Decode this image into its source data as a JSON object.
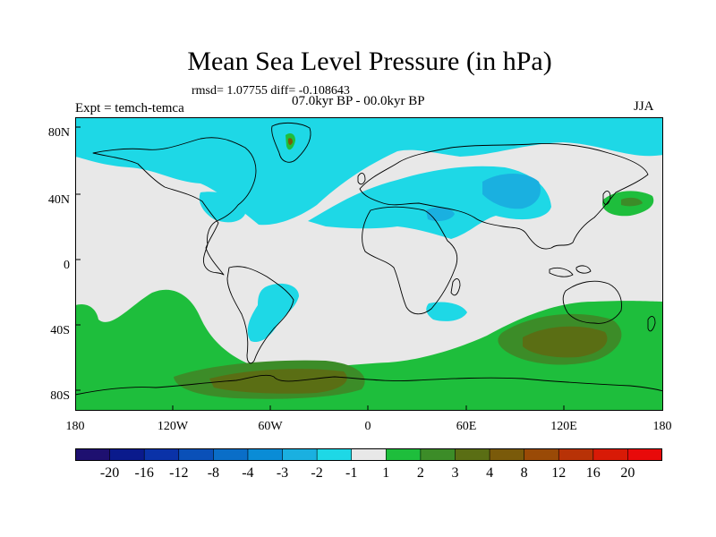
{
  "title": "Mean Sea Level Pressure (in hPa)",
  "stats": "rmsd= 1.07755 diff= -0.108643",
  "period": "07.0kyr BP - 00.0kyr BP",
  "experiment": "Expt = temch-temca",
  "season": "JJA",
  "lat_labels": [
    "80N",
    "40N",
    "0",
    "40S",
    "80S"
  ],
  "lon_labels": [
    "180",
    "120W",
    "60W",
    "0",
    "60E",
    "120E",
    "180"
  ],
  "colorbar": {
    "labels": [
      "-20",
      "-16",
      "-12",
      "-8",
      "-4",
      "-3",
      "-2",
      "-1",
      "1",
      "2",
      "3",
      "4",
      "8",
      "12",
      "16",
      "20"
    ],
    "colors": [
      "#1e1070",
      "#0a1a8c",
      "#0a32a8",
      "#0a50b8",
      "#0a6ec8",
      "#0a8cd6",
      "#1ab0e0",
      "#1ed8e6",
      "#e8e8e8",
      "#1ebe3c",
      "#3c8c28",
      "#5a6e14",
      "#7a5a0a",
      "#9a4a06",
      "#b83206",
      "#d81a06",
      "#e80a0a"
    ]
  },
  "colors": {
    "neutral": "#e8e8e8",
    "cyan": "#1ed8e6",
    "lightblue": "#1ab0e0",
    "green": "#1ebe3c",
    "darkgreen": "#3c8c28",
    "olive": "#5a6e14",
    "brown": "#7a5a0a",
    "coast": "#000000"
  }
}
